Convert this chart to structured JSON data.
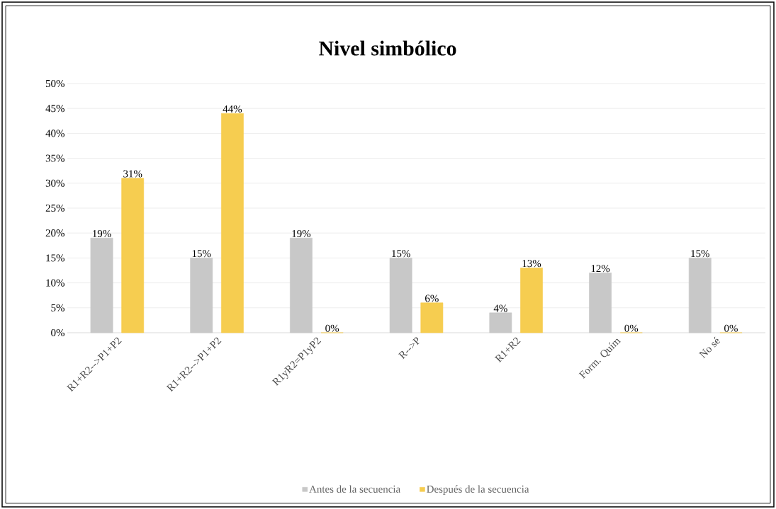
{
  "chart_data": {
    "type": "bar",
    "title": "Nivel simbólico",
    "categories": [
      "R1+R2-->P1+P2",
      "R1+R2-->P1+P2",
      "R1yR2=P1yP2",
      "R-->P",
      "R1+R2",
      "Form. Quím",
      "No sé"
    ],
    "series": [
      {
        "name": "Antes de la secuencia",
        "color": "#c8c8c8",
        "values": [
          19,
          15,
          19,
          15,
          4,
          12,
          15
        ],
        "value_labels": [
          "19%",
          "15%",
          "19%",
          "15%",
          "4%",
          "12%",
          "15%"
        ]
      },
      {
        "name": "Después de la secuencia",
        "color": "#f6cd50",
        "values": [
          31,
          44,
          0,
          6,
          13,
          0,
          0
        ],
        "value_labels": [
          "31%",
          "44%",
          "0%",
          "6%",
          "13%",
          "0%",
          "0%"
        ]
      }
    ],
    "ylim": [
      0,
      50
    ],
    "yticks": [
      {
        "value": 0,
        "label": "0%"
      },
      {
        "value": 5,
        "label": "5%"
      },
      {
        "value": 10,
        "label": "10%"
      },
      {
        "value": 15,
        "label": "15%"
      },
      {
        "value": 20,
        "label": "20%"
      },
      {
        "value": 25,
        "label": "25%"
      },
      {
        "value": 30,
        "label": "30%"
      },
      {
        "value": 35,
        "label": "35%"
      },
      {
        "value": 40,
        "label": "40%"
      },
      {
        "value": 45,
        "label": "45%"
      },
      {
        "value": 50,
        "label": "50%"
      }
    ],
    "grid": "y",
    "legend": "bottom"
  }
}
